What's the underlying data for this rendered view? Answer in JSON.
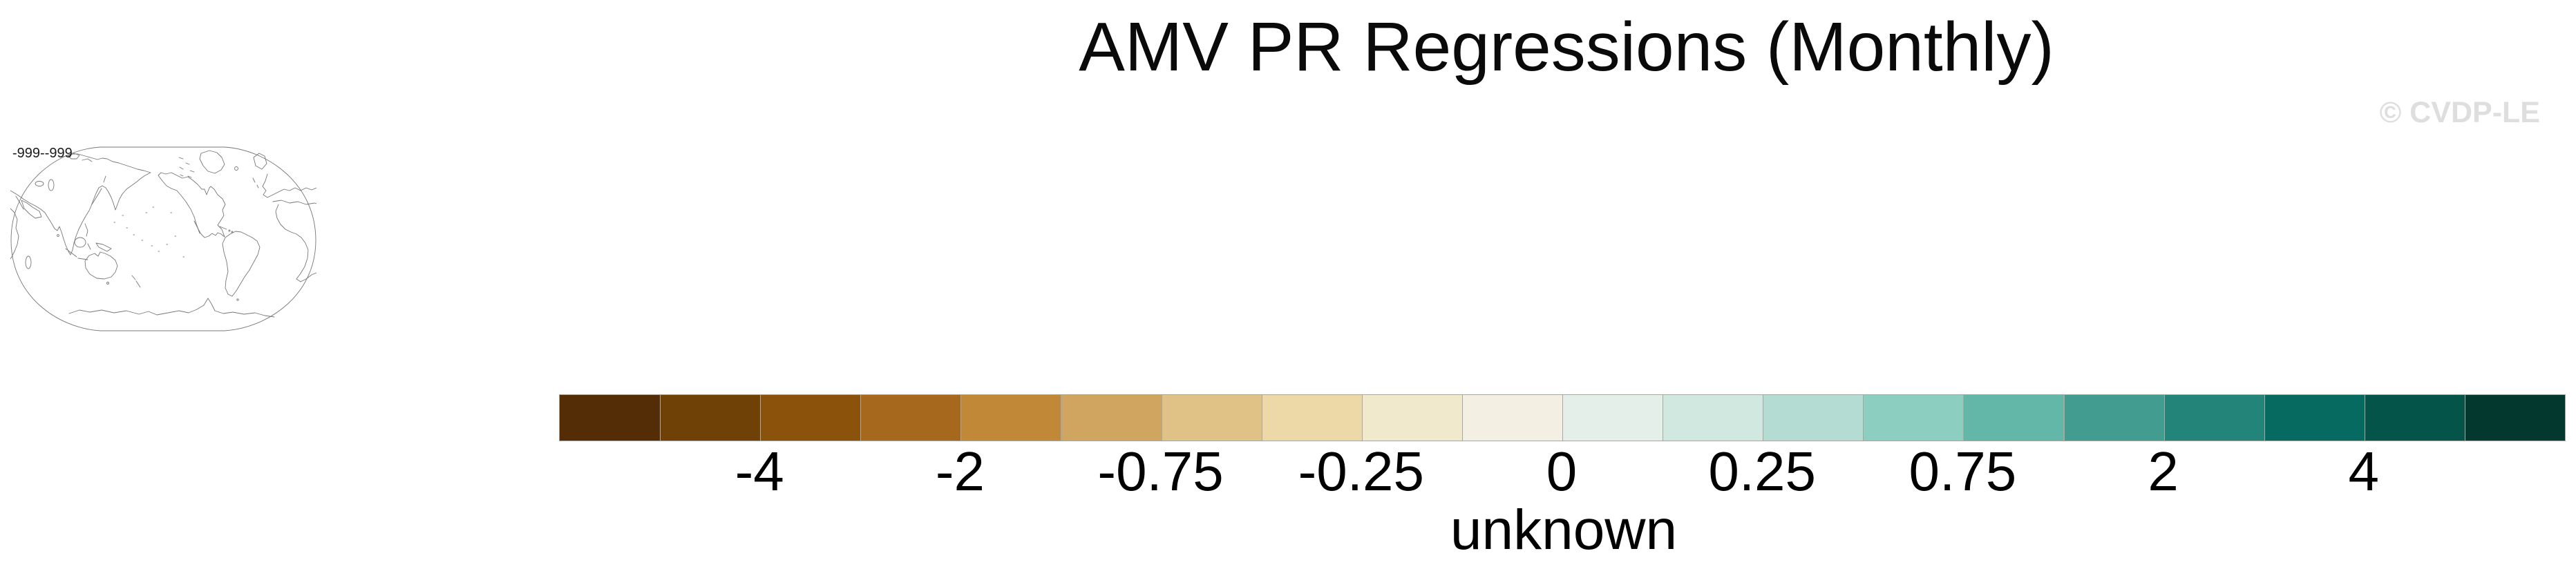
{
  "title": "AMV PR Regressions (Monthly)",
  "watermark": "© CVDP-LE",
  "map_panel": {
    "range_label": "-999--999"
  },
  "chart_data": {
    "type": "heatmap",
    "title": "AMV PR Regressions (Monthly)",
    "subtitle_left": "-999--999",
    "watermark": "© CVDP-LE",
    "units_label": "unknown",
    "legend_position": "bottom",
    "map": {
      "style": "world coastline outline, Pacific-centered, no data shaded",
      "annotation": "-999--999"
    },
    "colorbar": {
      "orientation": "horizontal",
      "n_cells": 20,
      "cell_colors": [
        "#542d06",
        "#6f4107",
        "#8a520a",
        "#a5681c",
        "#c18937",
        "#d0a560",
        "#e0c286",
        "#edd9a7",
        "#f1e9cc",
        "#f3efe3",
        "#e4efe9",
        "#d0e8e0",
        "#b4dcd3",
        "#8ccfc0",
        "#63b7a8",
        "#429d90",
        "#23857a",
        "#076a61",
        "#04544a",
        "#02382d"
      ],
      "tick_labels": [
        "-4",
        "-2",
        "-0.75",
        "-0.25",
        "0",
        "0.25",
        "0.75",
        "2",
        "4"
      ],
      "tick_boundary_indices": [
        2,
        4,
        6,
        8,
        10,
        12,
        14,
        16,
        18
      ],
      "separator_color": "#a8a89e"
    }
  }
}
